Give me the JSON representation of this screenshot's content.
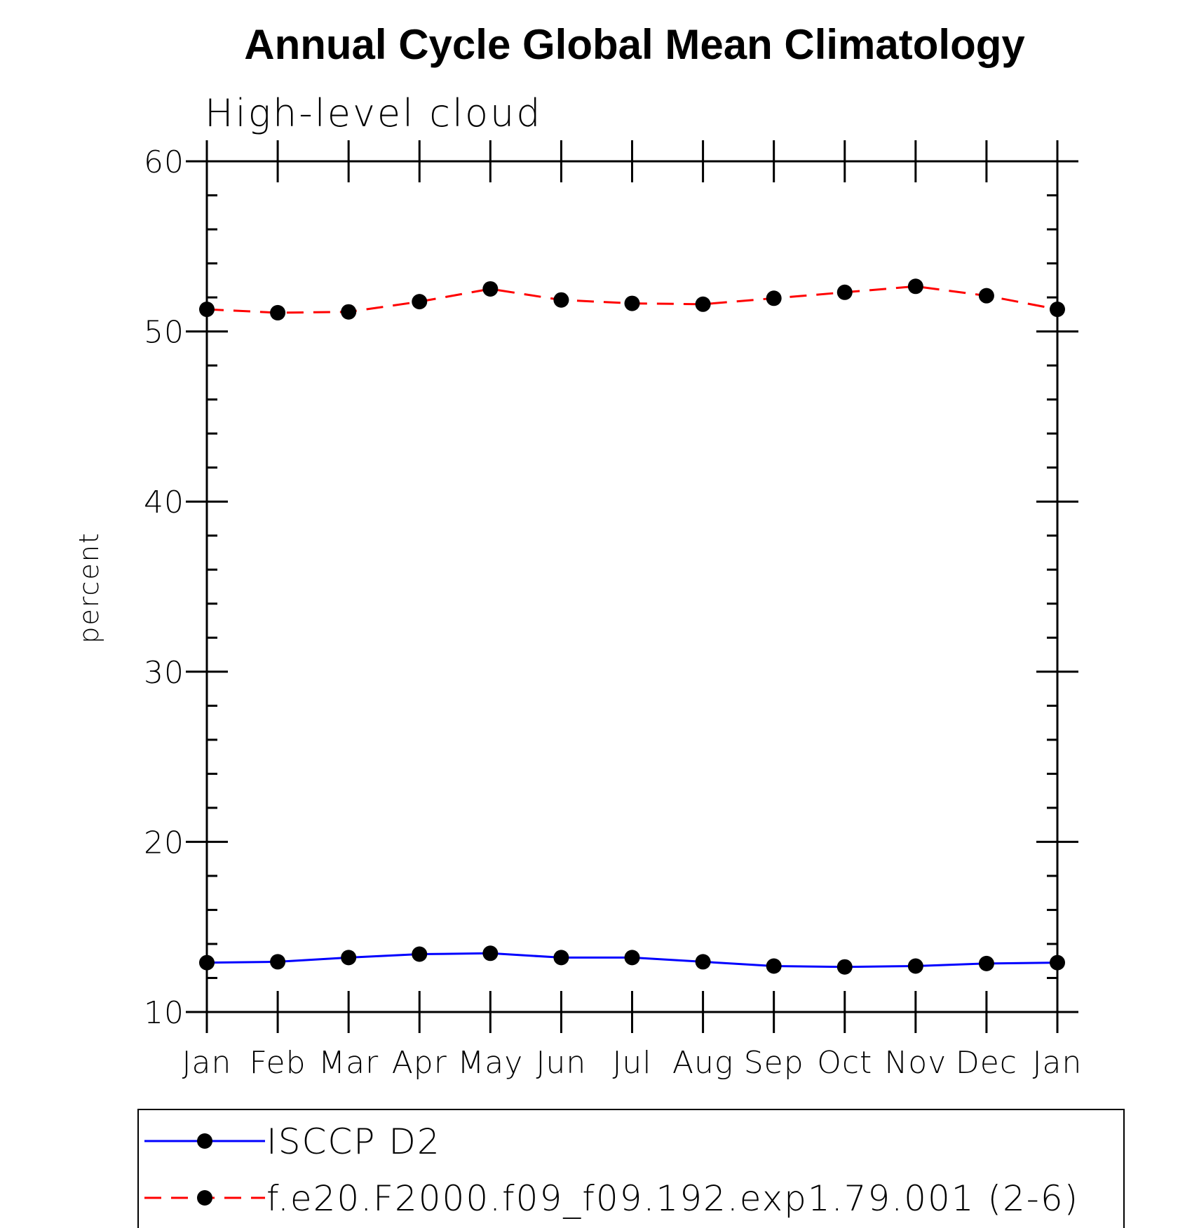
{
  "chart_data": {
    "type": "line",
    "title": "Annual Cycle Global Mean Climatology",
    "subtitle": "High-level cloud",
    "xlabel": "",
    "ylabel": "percent",
    "ylim": [
      10,
      60
    ],
    "yticks": [
      "10",
      "20",
      "30",
      "40",
      "50",
      "60"
    ],
    "categories": [
      "Jan",
      "Feb",
      "Mar",
      "Apr",
      "May",
      "Jun",
      "Jul",
      "Aug",
      "Sep",
      "Oct",
      "Nov",
      "Dec",
      "Jan"
    ],
    "legend_position": "bottom",
    "series": [
      {
        "name": "ISCCP D2",
        "color": "#0000ff",
        "dash": "solid",
        "values": [
          12.9,
          12.95,
          13.2,
          13.4,
          13.45,
          13.2,
          13.2,
          12.95,
          12.7,
          12.65,
          12.7,
          12.85,
          12.9
        ]
      },
      {
        "name": "f.e20.F2000.f09_f09.192.exp1.79.001 (2-6)",
        "color": "#ff0000",
        "dash": "dashed",
        "values": [
          51.3,
          51.1,
          51.15,
          51.75,
          52.5,
          51.85,
          51.65,
          51.6,
          51.95,
          52.3,
          52.65,
          52.1,
          51.3
        ]
      }
    ]
  }
}
